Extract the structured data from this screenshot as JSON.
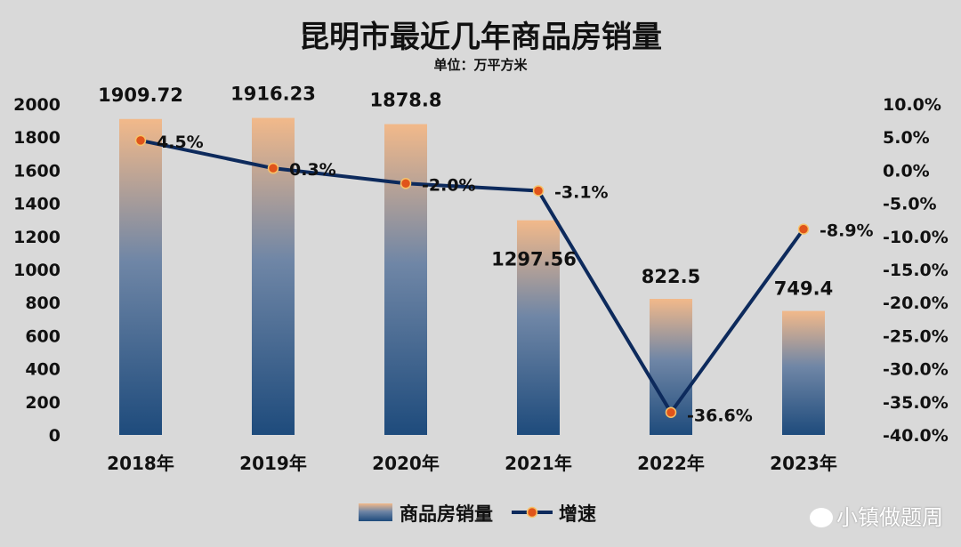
{
  "chart_data": {
    "type": "bar+line",
    "title": "昆明市最近几年商品房销量",
    "subtitle": "单位：万平方米",
    "categories": [
      "2018年",
      "2019年",
      "2020年",
      "2021年",
      "2022年",
      "2023年"
    ],
    "series": [
      {
        "name": "商品房销量",
        "type": "bar",
        "axis": "left",
        "values": [
          1909.72,
          1916.23,
          1878.8,
          1297.56,
          822.5,
          749.4
        ],
        "labels": [
          "1909.72",
          "1916.23",
          "1878.8",
          "1297.56",
          "822.5",
          "749.4"
        ]
      },
      {
        "name": "增速",
        "type": "line",
        "axis": "right",
        "values": [
          4.5,
          0.3,
          -2.0,
          -3.1,
          -36.6,
          -8.9
        ],
        "labels": [
          "4.5%",
          "0.3%",
          "-2.0%",
          "-3.1%",
          "-36.6%",
          "-8.9%"
        ]
      }
    ],
    "y_left": {
      "ylim": [
        0,
        2000
      ],
      "ticks": [
        "0",
        "200",
        "400",
        "600",
        "800",
        "1000",
        "1200",
        "1400",
        "1600",
        "1800",
        "2000"
      ]
    },
    "y_right": {
      "ylim": [
        -40,
        10
      ],
      "ticks": [
        "-40.0%",
        "-35.0%",
        "-30.0%",
        "-25.0%",
        "-20.0%",
        "-15.0%",
        "-10.0%",
        "-5.0%",
        "0.0%",
        "5.0%",
        "10.0%"
      ]
    },
    "legend": "bottom",
    "grid": false
  },
  "watermark": "小镇做题周",
  "colors": {
    "bar_top": "#f2b98a",
    "bar_mid": "#6f86a6",
    "bar_bottom": "#1e4b7c",
    "line": "#0d2a5c",
    "marker": "#e0541a",
    "background": "#d9d9d9"
  }
}
